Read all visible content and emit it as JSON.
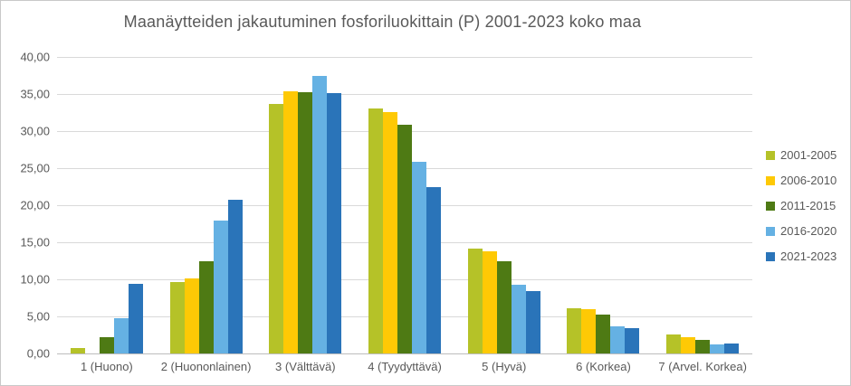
{
  "chart_data": {
    "type": "bar",
    "title": "Maanäytteiden jakautuminen fosforiluokittain (P) 2001-2023 koko maa",
    "categories": [
      "1  (Huono)",
      "2 (Huononlainen)",
      "3 (Välttävä)",
      "4 (Tyydyttävä)",
      "5 (Hyvä)",
      "6 (Korkea)",
      "7 (Arvel. Korkea)"
    ],
    "series": [
      {
        "name": "2001-2005",
        "color": "#b5c228",
        "values": [
          0.7,
          9.6,
          33.6,
          33.1,
          14.2,
          6.1,
          2.6
        ]
      },
      {
        "name": "2006-2010",
        "color": "#fec905",
        "values": [
          0.0,
          10.1,
          35.4,
          32.6,
          13.8,
          6.0,
          2.2
        ]
      },
      {
        "name": "2011-2015",
        "color": "#4e7a14",
        "values": [
          2.2,
          12.4,
          35.3,
          30.8,
          12.4,
          5.3,
          1.8
        ]
      },
      {
        "name": "2016-2020",
        "color": "#65b1e3",
        "values": [
          4.8,
          17.9,
          37.5,
          25.9,
          9.3,
          3.7,
          1.2
        ]
      },
      {
        "name": "2021-2023",
        "color": "#2a74b9",
        "values": [
          9.4,
          20.7,
          35.1,
          22.5,
          8.4,
          3.4,
          1.3
        ]
      }
    ],
    "ylim": [
      0,
      40
    ],
    "y_tick_labels": [
      "0,00",
      "5,00",
      "10,00",
      "15,00",
      "20,00",
      "25,00",
      "30,00",
      "35,00",
      "40,00"
    ],
    "xlabel": "",
    "ylabel": "",
    "grid": true,
    "legend_position": "right",
    "colors": {
      "text": "#595959",
      "gridline": "#d9d9d9",
      "axis": "#bdbdbd",
      "background": "#ffffff"
    }
  }
}
